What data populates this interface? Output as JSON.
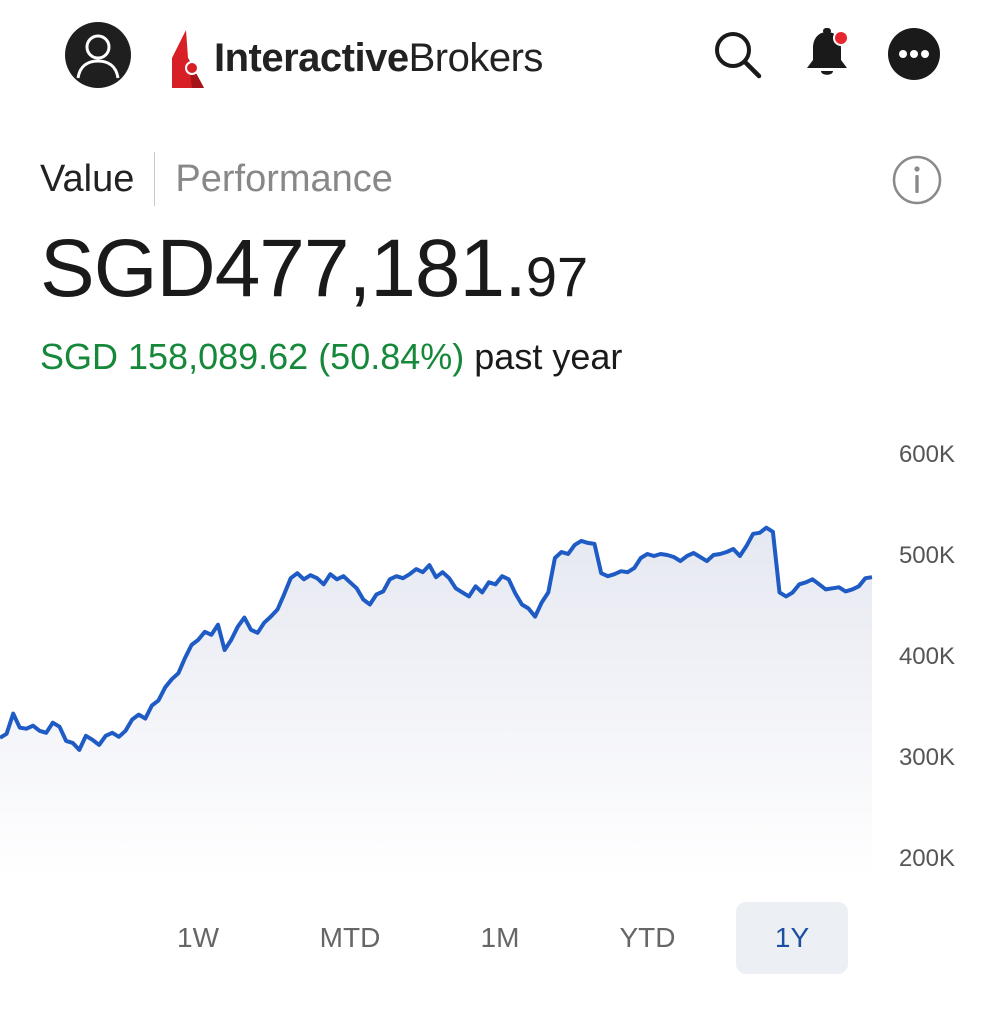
{
  "header": {
    "logo": {
      "bold_text": "Interactive",
      "regular_text": "Brokers",
      "brand_color": "#d81f26"
    },
    "icons": {
      "avatar": "user-avatar-icon",
      "search": "search-icon",
      "notifications": "bell-icon",
      "more": "more-options-icon"
    },
    "notification_dot_color": "#e8262d"
  },
  "tabs": [
    {
      "label": "Value",
      "active": true
    },
    {
      "label": "Performance",
      "active": false
    }
  ],
  "info_icon": "info-icon",
  "portfolio": {
    "value_integer": "SGD477,181.",
    "value_decimal": "97",
    "change_text": "SGD 158,089.62 (50.84%)",
    "change_period": "past year",
    "gain_color": "#16883a"
  },
  "chart_data": {
    "type": "area",
    "y_axis_position": "right",
    "yticks": [
      "600K",
      "500K",
      "400K",
      "300K",
      "200K"
    ],
    "ylim": [
      200000,
      600000
    ],
    "line_color": "#1f5bc4",
    "values": [
      318000,
      322000,
      342000,
      328000,
      327000,
      330000,
      325000,
      323000,
      333000,
      329000,
      315000,
      313000,
      306000,
      320000,
      316000,
      311000,
      320000,
      323000,
      319000,
      325000,
      336000,
      341000,
      337000,
      350000,
      355000,
      368000,
      376000,
      382000,
      397000,
      410000,
      415000,
      423000,
      420000,
      430000,
      405000,
      415000,
      428000,
      437000,
      425000,
      422000,
      432000,
      438000,
      445000,
      460000,
      476000,
      481000,
      475000,
      479000,
      476000,
      470000,
      480000,
      475000,
      478000,
      472000,
      466000,
      455000,
      450000,
      460000,
      463000,
      475000,
      478000,
      476000,
      480000,
      485000,
      482000,
      489000,
      477000,
      482000,
      476000,
      466000,
      462000,
      458000,
      468000,
      462000,
      472000,
      470000,
      478000,
      475000,
      461000,
      450000,
      446000,
      438000,
      452000,
      462000,
      496000,
      502000,
      500000,
      509000,
      513000,
      511000,
      510000,
      481000,
      478000,
      480000,
      483000,
      482000,
      486000,
      496000,
      500000,
      498000,
      500000,
      499000,
      497000,
      493000,
      498000,
      501000,
      497000,
      493000,
      499000,
      500000,
      502000,
      505000,
      498000,
      508000,
      520000,
      521000,
      526000,
      522000,
      462000,
      458000,
      462000,
      470000,
      472000,
      475000,
      470000,
      465000,
      466000,
      467000,
      463000,
      465000,
      468000,
      476000,
      477000
    ]
  },
  "range_selector": {
    "options": [
      {
        "label": "1W",
        "active": false
      },
      {
        "label": "MTD",
        "active": false
      },
      {
        "label": "1M",
        "active": false
      },
      {
        "label": "YTD",
        "active": false
      },
      {
        "label": "1Y",
        "active": true
      }
    ]
  }
}
